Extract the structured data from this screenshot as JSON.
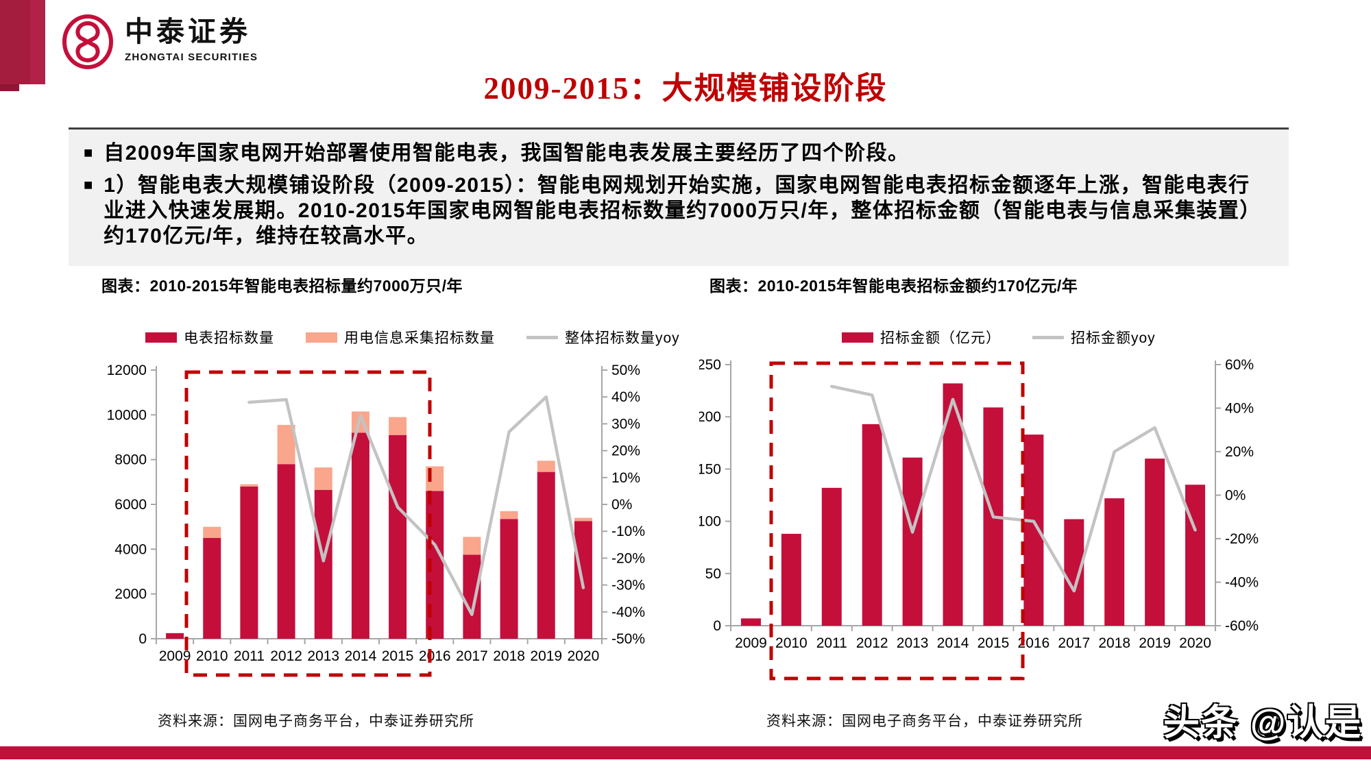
{
  "brand": {
    "logo_cn": "中泰证券",
    "logo_en": "ZHONGTAI SECURITIES"
  },
  "title": "2009-2015：大规模铺设阶段",
  "bullet_marker": "■",
  "bullets": [
    "自2009年国家电网开始部署使用智能电表，我国智能电表发展主要经历了四个阶段。",
    "1）智能电表大规模铺设阶段（2009-2015）：智能电网规划开始实施，国家电网智能电表招标金额逐年上涨，智能电表行业进入快速发展期。2010-2015年国家电网智能电表招标数量约7000万只/年，整体招标金额（智能电表与信息采集装置）约170亿元/年，维持在较高水平。"
  ],
  "watermark": "头条 @认是",
  "colors": {
    "brand_red": "#c40f3b",
    "bar_pink": "#f9a68c",
    "line_gray": "#c3c3c3",
    "highlight_red": "#c00000"
  },
  "chart_data": [
    {
      "type": "bar+line",
      "title": "图表：2010-2015年智能电表招标量约7000万只/年",
      "categories": [
        "2009",
        "2010",
        "2011",
        "2012",
        "2013",
        "2014",
        "2015",
        "2016",
        "2017",
        "2018",
        "2019",
        "2020"
      ],
      "series": [
        {
          "name": "电表招标数量",
          "kind": "bar",
          "stacked": true,
          "color": "#c40f3b",
          "values": [
            250,
            4500,
            6800,
            7800,
            6650,
            9200,
            9100,
            6600,
            3750,
            5350,
            7450,
            5250
          ]
        },
        {
          "name": "用电信息采集招标数量",
          "kind": "bar",
          "stacked": true,
          "color": "#f9a68c",
          "values": [
            0,
            500,
            100,
            1750,
            1000,
            950,
            800,
            1100,
            800,
            350,
            500,
            150
          ]
        },
        {
          "name": "整体招标数量yoy",
          "kind": "line",
          "axis": "right",
          "color": "#c3c3c3",
          "values": [
            null,
            null,
            38,
            39,
            -21,
            33,
            -1,
            -15,
            -41,
            27,
            40,
            -31
          ]
        }
      ],
      "left_axis": {
        "min": 0,
        "max": 12000,
        "step": 2000
      },
      "right_axis": {
        "min": -50,
        "max": 50,
        "step": 10,
        "suffix": "%"
      },
      "grid": false,
      "legend_position": "top",
      "highlight": {
        "from": "2010",
        "to": "2015",
        "style": "red-dashed-box"
      },
      "source": "资料来源：国网电子商务平台，中泰证券研究所"
    },
    {
      "type": "bar+line",
      "title": "图表：2010-2015年智能电表招标金额约170亿元/年",
      "categories": [
        "2009",
        "2010",
        "2011",
        "2012",
        "2013",
        "2014",
        "2015",
        "2016",
        "2017",
        "2018",
        "2019",
        "2020"
      ],
      "series": [
        {
          "name": "招标金额（亿元）",
          "kind": "bar",
          "stacked": false,
          "color": "#c40f3b",
          "values": [
            7,
            88,
            132,
            193,
            161,
            232,
            209,
            183,
            102,
            122,
            160,
            135
          ]
        },
        {
          "name": "招标金额yoy",
          "kind": "line",
          "axis": "right",
          "color": "#c3c3c3",
          "values": [
            null,
            null,
            50,
            46,
            -17,
            44,
            -10,
            -12,
            -44,
            20,
            31,
            -16
          ]
        }
      ],
      "left_axis": {
        "min": 0,
        "max": 250,
        "step": 50
      },
      "right_axis": {
        "min": -60,
        "max": 60,
        "step": 20,
        "suffix": "%"
      },
      "grid": false,
      "legend_position": "top",
      "highlight": {
        "from": "2010",
        "to": "2015",
        "style": "red-dashed-box"
      },
      "source": "资料来源：国网电子商务平台，中泰证券研究所"
    }
  ]
}
